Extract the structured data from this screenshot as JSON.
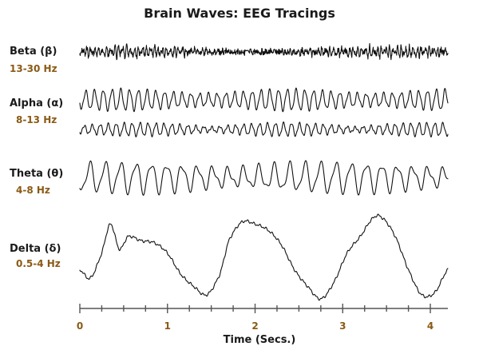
{
  "colors": {
    "range_text": "#8a5a14",
    "trace": "#111111",
    "axis": "#555555"
  },
  "chart_data": {
    "type": "line",
    "title": "Brain Waves: EEG Tracings",
    "xlabel": "Time (Secs.)",
    "ylabel": "",
    "xlim": [
      0,
      4.2
    ],
    "x_ticks": [
      0,
      1,
      2,
      3,
      4
    ],
    "grid": false,
    "series": [
      {
        "name": "Beta",
        "symbol": "β",
        "range": "13-30 Hz",
        "frequency_hz": 22,
        "kind": "beta"
      },
      {
        "name": "Alpha",
        "symbol": "α",
        "range": "8-13 Hz",
        "frequency_hz": 10,
        "kind": "alpha",
        "traces": 2
      },
      {
        "name": "Theta",
        "symbol": "θ",
        "range": "4-8 Hz",
        "frequency_hz": 6,
        "kind": "theta"
      },
      {
        "name": "Delta",
        "symbol": "δ",
        "range": "0.5-4 Hz",
        "kind": "delta",
        "x": [
          0,
          0.12,
          0.25,
          0.35,
          0.45,
          0.55,
          0.7,
          0.85,
          1.0,
          1.15,
          1.3,
          1.45,
          1.6,
          1.7,
          1.85,
          2.0,
          2.15,
          2.3,
          2.45,
          2.6,
          2.75,
          2.9,
          3.05,
          3.2,
          3.35,
          3.45,
          3.6,
          3.75,
          3.9,
          4.05,
          4.2
        ],
        "y": [
          -0.3,
          -0.5,
          0.1,
          0.8,
          0.2,
          0.5,
          0.4,
          0.35,
          0.1,
          -0.4,
          -0.7,
          -0.9,
          -0.4,
          0.4,
          0.85,
          0.8,
          0.65,
          0.3,
          -0.3,
          -0.7,
          -1.0,
          -0.6,
          0.1,
          0.5,
          0.95,
          0.95,
          0.5,
          -0.3,
          -0.9,
          -0.85,
          -0.3
        ]
      }
    ]
  }
}
